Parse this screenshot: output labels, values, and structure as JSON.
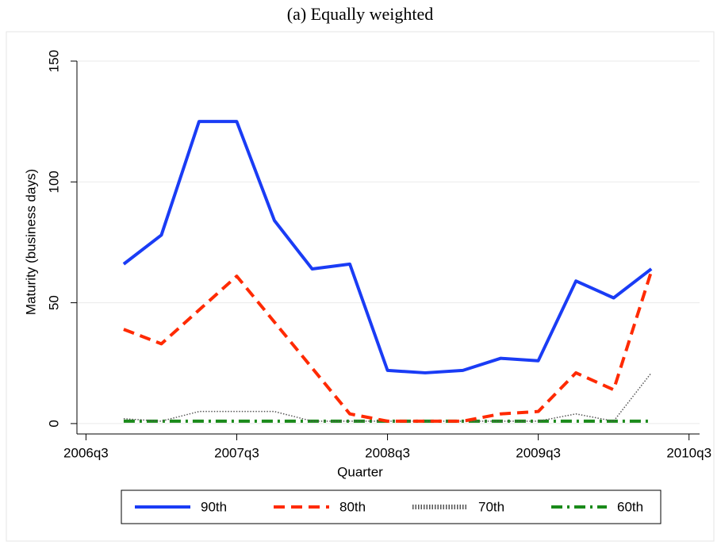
{
  "chart_data": {
    "type": "line",
    "title": "(a) Equally weighted",
    "x_label": "Quarter",
    "y_label": "Maturity (business days)",
    "x": [
      2006.75,
      2007,
      2007.25,
      2007.5,
      2007.75,
      2008,
      2008.25,
      2008.5,
      2008.75,
      2009,
      2009.25,
      2009.5,
      2009.75,
      2010,
      2010.25
    ],
    "series": [
      {
        "name": "90th",
        "color": "#1a3cf5",
        "dash": "solid",
        "values": [
          66,
          78,
          125,
          125,
          84,
          64,
          66,
          22,
          21,
          22,
          27,
          26,
          59,
          52,
          64
        ]
      },
      {
        "name": "80th",
        "color": "#ff2a00",
        "dash": "dashed",
        "values": [
          39,
          33,
          47,
          61,
          42,
          23,
          4,
          1,
          1,
          1,
          4,
          5,
          21,
          14,
          63
        ]
      },
      {
        "name": "70th",
        "color": "#555555",
        "dash": "dotted",
        "values": [
          2,
          1,
          5,
          5,
          5,
          1,
          1,
          1,
          1,
          1,
          1,
          1,
          4,
          1,
          21
        ]
      },
      {
        "name": "60th",
        "color": "#1a8a1a",
        "dash": "dashdot",
        "values": [
          1,
          1,
          1,
          1,
          1,
          1,
          1,
          1,
          1,
          1,
          1,
          1,
          1,
          1,
          1
        ]
      }
    ],
    "xlim": [
      2006.44,
      2010.57
    ],
    "xticks": [
      {
        "value": 2006.5,
        "label": "2006q3"
      },
      {
        "value": 2007.5,
        "label": "2007q3"
      },
      {
        "value": 2008.5,
        "label": "2008q3"
      },
      {
        "value": 2009.5,
        "label": "2009q3"
      },
      {
        "value": 2010.5,
        "label": "2010q3"
      }
    ],
    "ylim": [
      -4.3,
      150
    ],
    "yticks": [
      0,
      50,
      100,
      150
    ],
    "grid": true,
    "legend": "bottom"
  }
}
